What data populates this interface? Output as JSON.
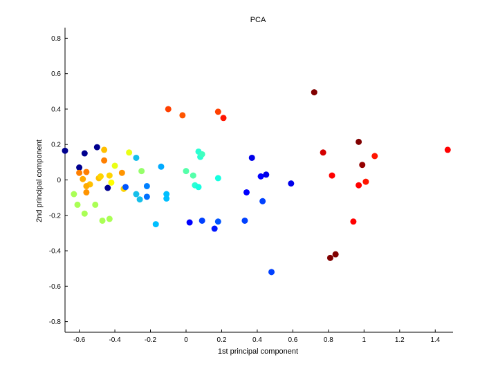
{
  "chart_data": {
    "type": "scatter",
    "title": "PCA",
    "xlabel": "1st principal component",
    "ylabel": "2nd principal component",
    "xlim": [
      -0.68,
      1.5
    ],
    "ylim": [
      -0.86,
      0.86
    ],
    "xticks": [
      -0.6,
      -0.4,
      -0.2,
      0,
      0.2,
      0.4,
      0.6,
      0.8,
      1,
      1.2,
      1.4
    ],
    "xtick_labels": [
      "-0.6",
      "-0.4",
      "-0.2",
      "0",
      "0.2",
      "0.4",
      "0.6",
      "0.8",
      "1",
      "1.2",
      "1.4"
    ],
    "yticks": [
      -0.8,
      -0.6,
      -0.4,
      -0.2,
      0,
      0.2,
      0.4,
      0.6,
      0.8
    ],
    "ytick_labels": [
      "-0.8",
      "-0.6",
      "-0.4",
      "-0.2",
      "0",
      "0.2",
      "0.4",
      "0.6",
      "0.8"
    ],
    "grid": false,
    "colormap": "jet",
    "points": [
      {
        "x": -0.68,
        "y": 0.165,
        "color": "#00008f"
      },
      {
        "x": -0.6,
        "y": 0.07,
        "color": "#00008f"
      },
      {
        "x": -0.57,
        "y": 0.15,
        "color": "#00008f"
      },
      {
        "x": -0.5,
        "y": 0.185,
        "color": "#00008f"
      },
      {
        "x": -0.44,
        "y": -0.045,
        "color": "#00008f"
      },
      {
        "x": -0.6,
        "y": 0.04,
        "color": "#ff7f00"
      },
      {
        "x": -0.56,
        "y": 0.045,
        "color": "#ff7f00"
      },
      {
        "x": -0.58,
        "y": 0.005,
        "color": "#ffaa00"
      },
      {
        "x": -0.54,
        "y": -0.025,
        "color": "#ffbf00"
      },
      {
        "x": -0.56,
        "y": -0.035,
        "color": "#ffaa00"
      },
      {
        "x": -0.56,
        "y": -0.07,
        "color": "#ff9400"
      },
      {
        "x": -0.49,
        "y": 0.01,
        "color": "#ffbf00"
      },
      {
        "x": -0.48,
        "y": 0.02,
        "color": "#ffd400"
      },
      {
        "x": -0.46,
        "y": 0.17,
        "color": "#ffbf00"
      },
      {
        "x": -0.46,
        "y": 0.11,
        "color": "#ff7f00"
      },
      {
        "x": -0.43,
        "y": 0.025,
        "color": "#ffd400"
      },
      {
        "x": -0.42,
        "y": -0.015,
        "color": "#ffff00"
      },
      {
        "x": -0.4,
        "y": 0.08,
        "color": "#eaff15"
      },
      {
        "x": -0.36,
        "y": 0.04,
        "color": "#ff9400"
      },
      {
        "x": -0.35,
        "y": -0.05,
        "color": "#ffd400"
      },
      {
        "x": -0.32,
        "y": 0.155,
        "color": "#eaff15"
      },
      {
        "x": -0.63,
        "y": -0.08,
        "color": "#aaff55"
      },
      {
        "x": -0.61,
        "y": -0.14,
        "color": "#aaff55"
      },
      {
        "x": -0.57,
        "y": -0.19,
        "color": "#aaff55"
      },
      {
        "x": -0.51,
        "y": -0.14,
        "color": "#aaff55"
      },
      {
        "x": -0.47,
        "y": -0.23,
        "color": "#aaff55"
      },
      {
        "x": -0.43,
        "y": -0.22,
        "color": "#aaff55"
      },
      {
        "x": -0.25,
        "y": 0.05,
        "color": "#95ff6a"
      },
      {
        "x": -0.34,
        "y": -0.04,
        "color": "#0055ff"
      },
      {
        "x": -0.28,
        "y": 0.125,
        "color": "#15bfea"
      },
      {
        "x": -0.28,
        "y": -0.08,
        "color": "#15bfea"
      },
      {
        "x": -0.26,
        "y": -0.11,
        "color": "#15bfea"
      },
      {
        "x": -0.22,
        "y": -0.035,
        "color": "#0080ff"
      },
      {
        "x": -0.22,
        "y": -0.095,
        "color": "#0070ff"
      },
      {
        "x": -0.17,
        "y": -0.25,
        "color": "#00bfff"
      },
      {
        "x": -0.14,
        "y": 0.075,
        "color": "#00aaff"
      },
      {
        "x": -0.11,
        "y": -0.08,
        "color": "#00bfff"
      },
      {
        "x": -0.11,
        "y": -0.105,
        "color": "#00bfff"
      },
      {
        "x": 0.0,
        "y": 0.05,
        "color": "#55ffaa"
      },
      {
        "x": 0.04,
        "y": 0.025,
        "color": "#55ffaa"
      },
      {
        "x": 0.05,
        "y": -0.03,
        "color": "#2affd4"
      },
      {
        "x": 0.07,
        "y": -0.04,
        "color": "#15ffe0"
      },
      {
        "x": 0.07,
        "y": 0.16,
        "color": "#2affd4"
      },
      {
        "x": 0.08,
        "y": 0.13,
        "color": "#2affd4"
      },
      {
        "x": 0.09,
        "y": 0.145,
        "color": "#40ffbf"
      },
      {
        "x": 0.18,
        "y": 0.01,
        "color": "#15ffe0"
      },
      {
        "x": 0.02,
        "y": -0.24,
        "color": "#0000ff"
      },
      {
        "x": 0.09,
        "y": -0.23,
        "color": "#0040ff"
      },
      {
        "x": 0.16,
        "y": -0.275,
        "color": "#0015ff"
      },
      {
        "x": 0.18,
        "y": -0.235,
        "color": "#0055ff"
      },
      {
        "x": 0.33,
        "y": -0.23,
        "color": "#0040ff"
      },
      {
        "x": 0.34,
        "y": -0.07,
        "color": "#0000ff"
      },
      {
        "x": 0.37,
        "y": 0.125,
        "color": "#0000ea"
      },
      {
        "x": 0.42,
        "y": 0.02,
        "color": "#0000ff"
      },
      {
        "x": 0.43,
        "y": -0.12,
        "color": "#0040ff"
      },
      {
        "x": 0.45,
        "y": 0.03,
        "color": "#0000ea"
      },
      {
        "x": 0.48,
        "y": -0.52,
        "color": "#0040ff"
      },
      {
        "x": 0.59,
        "y": -0.02,
        "color": "#0000ea"
      },
      {
        "x": -0.1,
        "y": 0.4,
        "color": "#ff4000"
      },
      {
        "x": -0.02,
        "y": 0.365,
        "color": "#ff5500"
      },
      {
        "x": 0.18,
        "y": 0.385,
        "color": "#ff4000"
      },
      {
        "x": 0.21,
        "y": 0.35,
        "color": "#ff1500"
      },
      {
        "x": 0.72,
        "y": 0.495,
        "color": "#800000"
      },
      {
        "x": 0.77,
        "y": 0.155,
        "color": "#d40000"
      },
      {
        "x": 0.82,
        "y": 0.025,
        "color": "#ff0000"
      },
      {
        "x": 0.81,
        "y": -0.44,
        "color": "#800000"
      },
      {
        "x": 0.84,
        "y": -0.42,
        "color": "#800000"
      },
      {
        "x": 0.94,
        "y": -0.235,
        "color": "#ff0000"
      },
      {
        "x": 0.97,
        "y": 0.215,
        "color": "#800000"
      },
      {
        "x": 0.99,
        "y": 0.085,
        "color": "#950000"
      },
      {
        "x": 0.97,
        "y": -0.03,
        "color": "#ff0000"
      },
      {
        "x": 1.01,
        "y": -0.01,
        "color": "#ff1500"
      },
      {
        "x": 1.06,
        "y": 0.135,
        "color": "#ff1500"
      },
      {
        "x": 1.47,
        "y": 0.17,
        "color": "#ff0000"
      }
    ]
  }
}
